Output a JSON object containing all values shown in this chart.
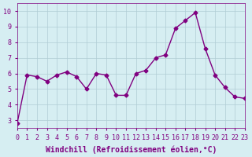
{
  "x": [
    0,
    1,
    2,
    3,
    4,
    5,
    6,
    7,
    8,
    9,
    10,
    11,
    12,
    13,
    14,
    15,
    16,
    17,
    18,
    19,
    20,
    21,
    22,
    23
  ],
  "y": [
    2.8,
    5.9,
    5.8,
    5.5,
    5.9,
    6.1,
    5.8,
    5.0,
    6.0,
    5.9,
    4.6,
    4.6,
    6.0,
    6.2,
    7.0,
    7.2,
    8.9,
    9.4,
    9.9,
    7.6,
    5.9,
    5.1,
    4.5,
    4.4
  ],
  "line_color": "#800080",
  "marker": "D",
  "marker_size": 2.5,
  "bg_color": "#d6eef2",
  "grid_color": "#b0ccd4",
  "xlabel": "Windchill (Refroidissement éolien,°C)",
  "ylabel": "",
  "xlim": [
    0,
    23
  ],
  "ylim": [
    2.5,
    10.5
  ],
  "yticks": [
    3,
    4,
    5,
    6,
    7,
    8,
    9,
    10
  ],
  "xticks": [
    0,
    1,
    2,
    3,
    4,
    5,
    6,
    7,
    8,
    9,
    10,
    11,
    12,
    13,
    14,
    15,
    16,
    17,
    18,
    19,
    20,
    21,
    22,
    23
  ],
  "tick_label_fontsize": 6,
  "xlabel_fontsize": 7,
  "line_width": 1.0
}
